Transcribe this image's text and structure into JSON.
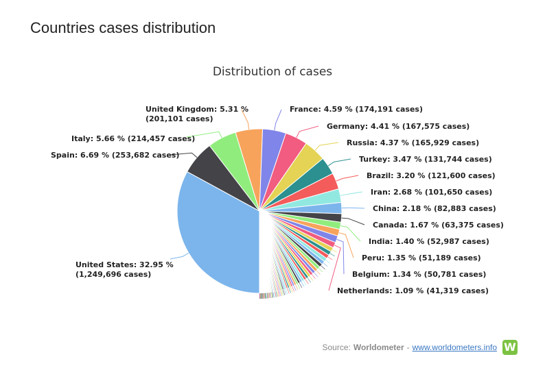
{
  "page": {
    "title": "Countries cases distribution"
  },
  "footer": {
    "source_prefix": "Source:",
    "source_name": "Worldometer",
    "separator": "-",
    "link_text": "www.worldometers.info",
    "logo_letter": "W",
    "logo_color": "#7cc242"
  },
  "chart_data": {
    "type": "pie",
    "title": "Distribution of cases",
    "start_color_others": "#999999",
    "slices": [
      {
        "name": "United States",
        "label": "United States: 32.95 %",
        "label2": "(1,249,696 cases)",
        "value": 32.95,
        "color": "#7cb5ec"
      },
      {
        "name": "Spain",
        "label": "Spain: 6.69 % (253,682 cases)",
        "value": 6.69,
        "color": "#434348"
      },
      {
        "name": "Italy",
        "label": "Italy: 5.66 % (214,457 cases)",
        "value": 5.66,
        "color": "#90ed7d"
      },
      {
        "name": "United Kingdom",
        "label": "United Kingdom: 5.31 %",
        "label2": "(201,101 cases)",
        "value": 5.31,
        "color": "#f7a35c"
      },
      {
        "name": "France",
        "label": "France: 4.59 % (174,191 cases)",
        "value": 4.59,
        "color": "#8085e9"
      },
      {
        "name": "Germany",
        "label": "Germany: 4.41 % (167,575 cases)",
        "value": 4.41,
        "color": "#f15c80"
      },
      {
        "name": "Russia",
        "label": "Russia: 4.37 % (165,929 cases)",
        "value": 4.37,
        "color": "#e4d354"
      },
      {
        "name": "Turkey",
        "label": "Turkey: 3.47 % (131,744 cases)",
        "value": 3.47,
        "color": "#2b908f"
      },
      {
        "name": "Brazil",
        "label": "Brazil: 3.20 % (121,600 cases)",
        "value": 3.2,
        "color": "#f45b5b"
      },
      {
        "name": "Iran",
        "label": "Iran: 2.68 % (101,650 cases)",
        "value": 2.68,
        "color": "#91e8e1"
      },
      {
        "name": "China",
        "label": "China: 2.18 % (82,883 cases)",
        "value": 2.18,
        "color": "#7cb5ec"
      },
      {
        "name": "Canada",
        "label": "Canada: 1.67 % (63,375 cases)",
        "value": 1.67,
        "color": "#434348"
      },
      {
        "name": "India",
        "label": "India: 1.40 % (52,987 cases)",
        "value": 1.4,
        "color": "#90ed7d"
      },
      {
        "name": "Peru",
        "label": "Peru: 1.35 % (51,189 cases)",
        "value": 1.35,
        "color": "#f7a35c"
      },
      {
        "name": "Belgium",
        "label": "Belgium: 1.34 % (50,781 cases)",
        "value": 1.34,
        "color": "#8085e9"
      },
      {
        "name": "Netherlands",
        "label": "Netherlands: 1.09 % (41,319 cases)",
        "value": 1.09,
        "color": "#f15c80"
      }
    ],
    "palette": [
      "#7cb5ec",
      "#434348",
      "#90ed7d",
      "#f7a35c",
      "#8085e9",
      "#f15c80",
      "#e4d354",
      "#2b908f",
      "#f45b5b",
      "#91e8e1"
    ]
  }
}
